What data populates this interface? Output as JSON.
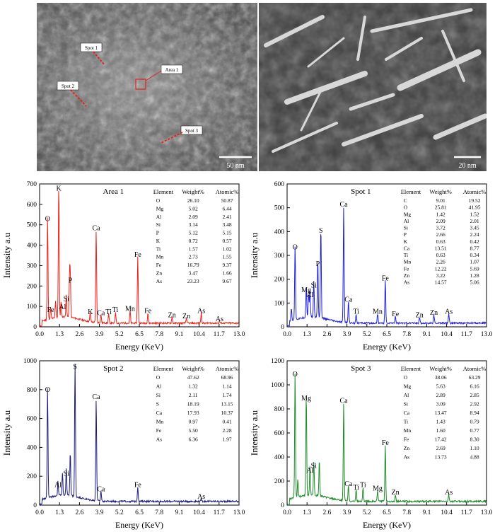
{
  "sem_left": {
    "labels": {
      "spot1": "Spot 1",
      "spot2": "Spot 2",
      "spot3": "Spot 3",
      "area1": "Area 1"
    },
    "scale_bar": "50 nm"
  },
  "sem_right": {
    "scale_bar": "20 nm"
  },
  "chart_data": [
    {
      "type": "line",
      "title": "Area 1",
      "xlabel": "Energy (KeV)",
      "ylabel": "Intensity a.u",
      "xlim": [
        0,
        13
      ],
      "ylim": [
        0,
        700
      ],
      "xticks": [
        "0.0",
        "1.3",
        "2.6",
        "3.9",
        "5.2",
        "6.5",
        "7.8",
        "9.1",
        "10.4",
        "11.7",
        "13.0"
      ],
      "yticks": [
        "0",
        "100",
        "200",
        "300",
        "400",
        "500",
        "600",
        "700"
      ],
      "color": "#e8221b",
      "peaks": [
        [
          0.52,
          500
        ],
        [
          0.72,
          55
        ],
        [
          1.04,
          80
        ],
        [
          1.25,
          650
        ],
        [
          1.4,
          75
        ],
        [
          1.74,
          110
        ],
        [
          1.95,
          190
        ],
        [
          2.0,
          200
        ],
        [
          3.3,
          45
        ],
        [
          3.69,
          455
        ],
        [
          4.0,
          40
        ],
        [
          4.5,
          45
        ],
        [
          4.95,
          55
        ],
        [
          5.9,
          60
        ],
        [
          6.4,
          325
        ],
        [
          7.06,
          50
        ],
        [
          8.63,
          30
        ],
        [
          9.57,
          25
        ],
        [
          10.54,
          50
        ],
        [
          11.73,
          10
        ]
      ],
      "peak_labels": [
        [
          "O",
          0.52,
          500
        ],
        [
          "Fe",
          0.72,
          55
        ],
        [
          "Al",
          1.49,
          70
        ],
        [
          "K",
          1.25,
          650
        ],
        [
          "Si",
          1.74,
          110
        ],
        [
          "P",
          2.0,
          200
        ],
        [
          "K",
          3.31,
          45
        ],
        [
          "Ca",
          3.69,
          455
        ],
        [
          "Ca",
          4.0,
          40
        ],
        [
          "Ti",
          4.5,
          45
        ],
        [
          "Ti",
          4.93,
          55
        ],
        [
          "Mn",
          5.9,
          60
        ],
        [
          "Fe",
          6.4,
          325
        ],
        [
          "Fe",
          7.06,
          50
        ],
        [
          "Zn",
          8.63,
          30
        ],
        [
          "Zn",
          9.57,
          25
        ],
        [
          "As",
          10.54,
          50
        ],
        [
          "As",
          11.73,
          10
        ]
      ],
      "table": {
        "headers": [
          "Element",
          "Weight%",
          "Atomic%"
        ],
        "rows": [
          [
            "O",
            "26.10",
            "50.87"
          ],
          [
            "Mg",
            "5.02",
            "6.44"
          ],
          [
            "Al",
            "2.09",
            "2.41"
          ],
          [
            "Si",
            "3.14",
            "3.48"
          ],
          [
            "P",
            "5.12",
            "5.15"
          ],
          [
            "K",
            "0.72",
            "0.57"
          ],
          [
            "Ti",
            "1.57",
            "1.02"
          ],
          [
            "Mn",
            "2.73",
            "1.55"
          ],
          [
            "Fe",
            "16.79",
            "9.37"
          ],
          [
            "Zn",
            "3.47",
            "1.66"
          ],
          [
            "As",
            "23.23",
            "9.67"
          ]
        ]
      }
    },
    {
      "type": "line",
      "title": "Spot 1",
      "xlabel": "Energy (KeV)",
      "ylabel": "Intensity a.u",
      "xlim": [
        0,
        13
      ],
      "ylim": [
        0,
        600
      ],
      "xticks": [
        "0.0",
        "1.3",
        "2.6",
        "3.9",
        "5.2",
        "6.5",
        "7.8",
        "9.1",
        "10.4",
        "11.7",
        "13.0"
      ],
      "yticks": [
        "0",
        "100",
        "200",
        "300",
        "400",
        "500",
        "600"
      ],
      "color": "#1e22d6",
      "peaks": [
        [
          0.28,
          50
        ],
        [
          0.52,
          310
        ],
        [
          1.25,
          130
        ],
        [
          1.4,
          100
        ],
        [
          1.49,
          110
        ],
        [
          1.74,
          150
        ],
        [
          2.0,
          240
        ],
        [
          2.2,
          380
        ],
        [
          3.69,
          490
        ],
        [
          4.0,
          90
        ],
        [
          4.5,
          40
        ],
        [
          5.9,
          40
        ],
        [
          6.4,
          180
        ],
        [
          7.06,
          30
        ],
        [
          8.63,
          25
        ],
        [
          9.57,
          35
        ],
        [
          10.54,
          40
        ]
      ],
      "peak_labels": [
        [
          "O",
          0.52,
          310
        ],
        [
          "Mg",
          1.25,
          130
        ],
        [
          "Al",
          1.49,
          110
        ],
        [
          "Si",
          1.74,
          150
        ],
        [
          "P",
          2.0,
          240
        ],
        [
          "S",
          2.2,
          380
        ],
        [
          "Ca",
          3.69,
          490
        ],
        [
          "Ca",
          4.0,
          90
        ],
        [
          "Ti",
          4.5,
          40
        ],
        [
          "Mn",
          5.9,
          40
        ],
        [
          "Fe",
          6.4,
          180
        ],
        [
          "Fe",
          7.06,
          30
        ],
        [
          "Zn",
          8.63,
          25
        ],
        [
          "Zn",
          9.57,
          35
        ],
        [
          "As",
          10.54,
          40
        ]
      ],
      "table": {
        "headers": [
          "Element",
          "Weight%",
          "Atomic%"
        ],
        "rows": [
          [
            "C",
            "9.01",
            "19.52"
          ],
          [
            "O",
            "25.81",
            "41.95"
          ],
          [
            "Mg",
            "1.42",
            "1.52"
          ],
          [
            "Al",
            "2.09",
            "2.01"
          ],
          [
            "Si",
            "3.72",
            "3.45"
          ],
          [
            "P",
            "2.66",
            "2.24"
          ],
          [
            "K",
            "0.63",
            "0.42"
          ],
          [
            "Ca",
            "13.51",
            "8.77"
          ],
          [
            "Ti",
            "0.63",
            "0.34"
          ],
          [
            "Mn",
            "2.26",
            "1.07"
          ],
          [
            "Fe",
            "12.22",
            "5.69"
          ],
          [
            "Zn",
            "3.22",
            "1.28"
          ],
          [
            "As",
            "14.57",
            "5.06"
          ]
        ]
      }
    },
    {
      "type": "line",
      "title": "Spot 2",
      "xlabel": "Energy (KeV)",
      "ylabel": "Intensity a.u",
      "xlim": [
        0,
        13
      ],
      "ylim": [
        0,
        1000
      ],
      "xticks": [
        "0.0",
        "1.3",
        "2.6",
        "3.9",
        "5.2",
        "6.5",
        "7.8",
        "9.1",
        "10.4",
        "11.7",
        "13.0"
      ],
      "yticks": [
        "0",
        "200",
        "400",
        "600",
        "800",
        "1000"
      ],
      "color": "#1b1b7a",
      "peaks": [
        [
          0.52,
          760
        ],
        [
          1.2,
          100
        ],
        [
          1.49,
          150
        ],
        [
          1.74,
          180
        ],
        [
          2.0,
          300
        ],
        [
          2.31,
          920
        ],
        [
          3.69,
          710
        ],
        [
          4.0,
          70
        ],
        [
          6.4,
          100
        ],
        [
          10.54,
          20
        ]
      ],
      "peak_labels": [
        [
          "O",
          0.52,
          760
        ],
        [
          "Al",
          1.2,
          100
        ],
        [
          "Si",
          1.74,
          180
        ],
        [
          "S",
          2.31,
          920
        ],
        [
          "Ca",
          3.69,
          710
        ],
        [
          "Ca",
          4.0,
          70
        ],
        [
          "Fe",
          6.4,
          100
        ],
        [
          "As",
          10.54,
          20
        ]
      ],
      "table": {
        "headers": [
          "Element",
          "Weight%",
          "Atomic%"
        ],
        "rows": [
          [
            "O",
            "47.62",
            "68.96"
          ],
          [
            "Al",
            "1.32",
            "1.14"
          ],
          [
            "Si",
            "2.11",
            "1.74"
          ],
          [
            "S",
            "18.19",
            "13.15"
          ],
          [
            "Ca",
            "17.93",
            "10.37"
          ],
          [
            "Mn",
            "0.97",
            "0.41"
          ],
          [
            "Fe",
            "5.50",
            "2.28"
          ],
          [
            "As",
            "6.36",
            "1.97"
          ]
        ]
      }
    },
    {
      "type": "line",
      "title": "Spot 3",
      "xlabel": "Energy (KeV)",
      "ylabel": "Intensity a.u",
      "xlim": [
        0,
        13
      ],
      "ylim": [
        0,
        1200
      ],
      "xticks": [
        "0.0",
        "1.3",
        "2.6",
        "3.9",
        "5.2",
        "6.5",
        "7.8",
        "9.1",
        "10.4",
        "11.7",
        "13.0"
      ],
      "yticks": [
        "0",
        "200",
        "400",
        "600",
        "800",
        "1000",
        "1200"
      ],
      "color": "#1e8a2a",
      "peaks": [
        [
          0.52,
          1040
        ],
        [
          0.7,
          150
        ],
        [
          1.25,
          840
        ],
        [
          1.49,
          240
        ],
        [
          1.74,
          280
        ],
        [
          2.1,
          300
        ],
        [
          3.69,
          820
        ],
        [
          4.0,
          130
        ],
        [
          4.5,
          100
        ],
        [
          4.95,
          120
        ],
        [
          5.9,
          90
        ],
        [
          6.4,
          470
        ],
        [
          7.06,
          60
        ],
        [
          10.54,
          60
        ]
      ],
      "peak_labels": [
        [
          "O",
          0.52,
          1040
        ],
        [
          "Mg",
          1.25,
          840
        ],
        [
          "Al",
          1.49,
          240
        ],
        [
          "Si",
          1.74,
          280
        ],
        [
          "Ca",
          3.69,
          820
        ],
        [
          "Ca",
          4.0,
          130
        ],
        [
          "Ti",
          4.5,
          100
        ],
        [
          "Ti",
          4.95,
          120
        ],
        [
          "Mg",
          5.9,
          90
        ],
        [
          "Fe",
          6.4,
          470
        ],
        [
          "Zn",
          7.06,
          60
        ],
        [
          "As",
          10.54,
          60
        ]
      ],
      "table": {
        "headers": [
          "Element",
          "Weight%",
          "Atomic%"
        ],
        "rows": [
          [
            "O",
            "38.06",
            "63.29"
          ],
          [
            "Mg",
            "5.63",
            "6.16"
          ],
          [
            "Al",
            "2.89",
            "2.85"
          ],
          [
            "Si",
            "3.09",
            "2.92"
          ],
          [
            "Ca",
            "13.47",
            "8.94"
          ],
          [
            "Ti",
            "1.43",
            "0.79"
          ],
          [
            "Mn",
            "1.60",
            "0.77"
          ],
          [
            "Fe",
            "17.42",
            "8.30"
          ],
          [
            "Zn",
            "2.69",
            "1.10"
          ],
          [
            "As",
            "13.73",
            "4.88"
          ]
        ]
      }
    }
  ]
}
